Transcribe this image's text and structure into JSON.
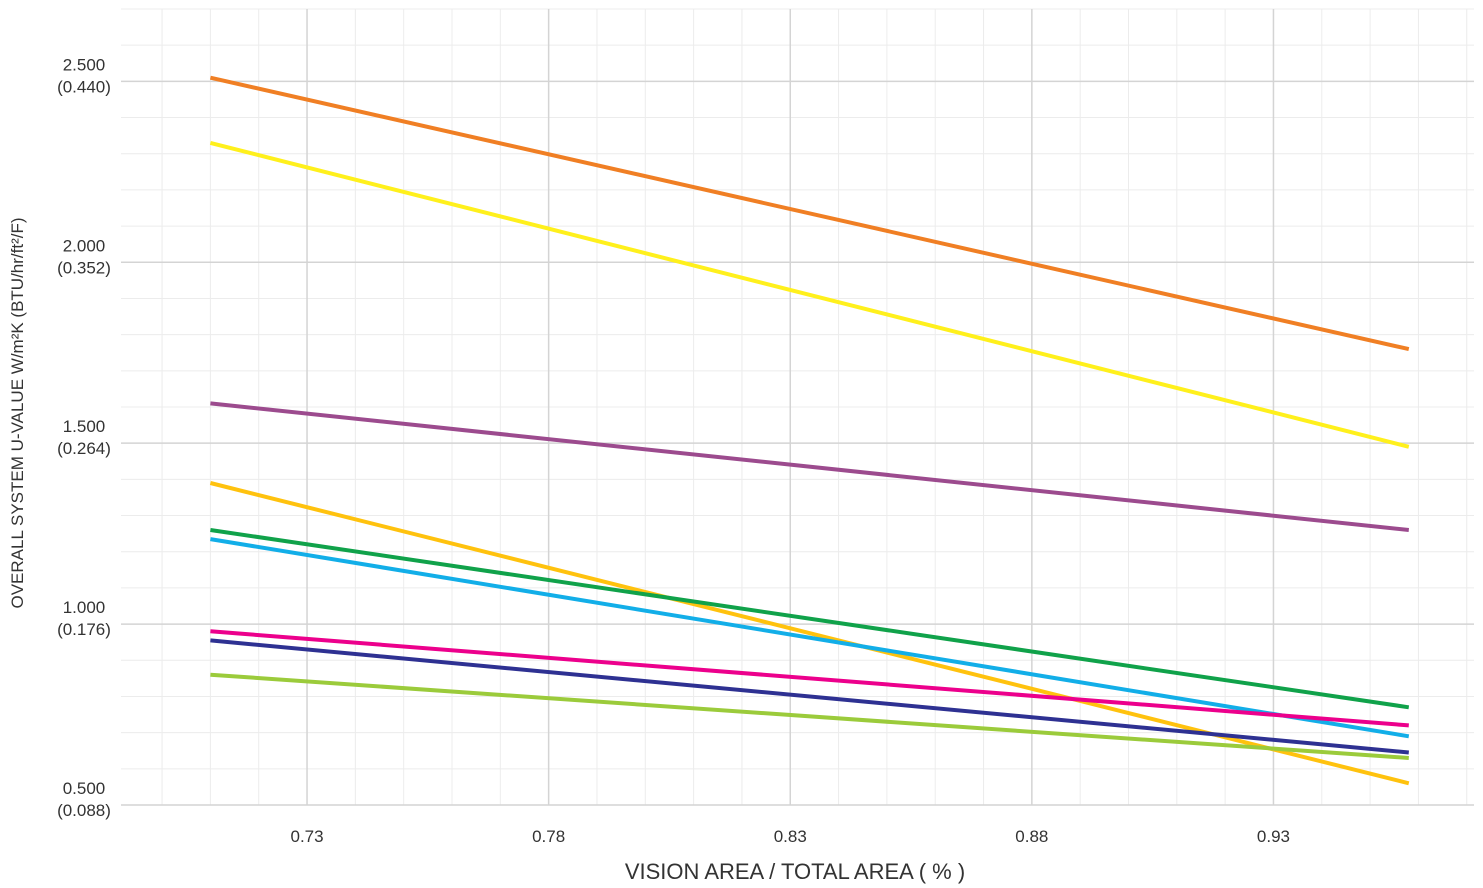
{
  "chart_data": {
    "type": "line",
    "xlabel": "VISION AREA / TOTAL AREA ( % )",
    "ylabel": "OVERALL SYSTEM U-VALUE   W/m²K   (BTU/hr/ft²/F)",
    "xlim": [
      0.6915,
      0.9715
    ],
    "ylim": [
      0.5,
      2.7
    ],
    "x_ticks": [
      "0.73",
      "0.78",
      "0.83",
      "0.88",
      "0.93"
    ],
    "y_ticks": [
      {
        "value": 0.5,
        "label": "0.500",
        "sub": "(0.088)"
      },
      {
        "value": 1.0,
        "label": "1.000",
        "sub": "(0.176)"
      },
      {
        "value": 1.5,
        "label": "1.500",
        "sub": "(0.264)"
      },
      {
        "value": 2.0,
        "label": "2.000",
        "sub": "(0.352)"
      },
      {
        "value": 2.5,
        "label": "2.500",
        "sub": "(0.440)"
      }
    ],
    "grid": true,
    "x": [
      0.71,
      0.958
    ],
    "series": [
      {
        "color": "#F07F24",
        "values": [
          2.51,
          1.76
        ]
      },
      {
        "color": "#FFF01C",
        "values": [
          2.33,
          1.49
        ]
      },
      {
        "color": "#9C4B8E",
        "values": [
          1.61,
          1.26
        ]
      },
      {
        "color": "#FFC20E",
        "values": [
          1.39,
          0.56
        ]
      },
      {
        "color": "#10A24A",
        "values": [
          1.26,
          0.77
        ]
      },
      {
        "color": "#12AEE8",
        "values": [
          1.235,
          0.69
        ]
      },
      {
        "color": "#EC008C",
        "values": [
          0.98,
          0.72
        ]
      },
      {
        "color": "#2E3192",
        "values": [
          0.955,
          0.645
        ]
      },
      {
        "color": "#9BCB3B",
        "values": [
          0.86,
          0.63
        ]
      }
    ]
  }
}
